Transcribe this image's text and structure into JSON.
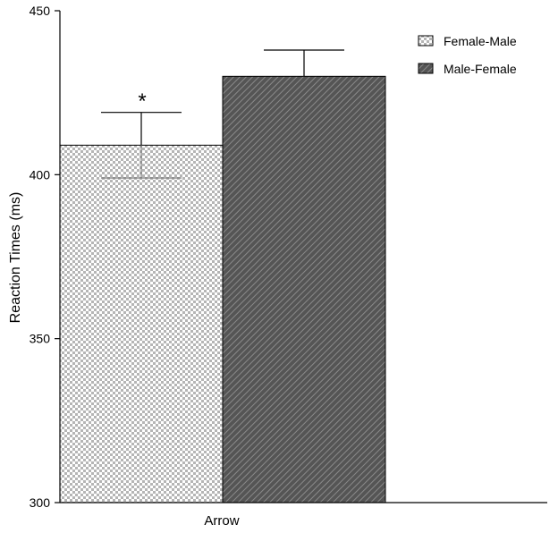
{
  "chart_data": {
    "type": "bar",
    "categories": [
      "Arrow"
    ],
    "series": [
      {
        "name": "Female-Male",
        "values": [
          409
        ],
        "error": [
          10
        ],
        "pattern": "checker"
      },
      {
        "name": "Male-Female",
        "values": [
          430
        ],
        "error": [
          8
        ],
        "pattern": "diagonal-hatch"
      }
    ],
    "xlabel": "",
    "ylabel": "Reaction Times (ms)",
    "ylim": [
      300,
      450
    ],
    "yticks": [
      300,
      350,
      400,
      450
    ],
    "annotations": [
      {
        "series": "Female-Male",
        "category": "Arrow",
        "text": "*"
      }
    ],
    "legend": {
      "placement": "top-right"
    },
    "grid": false,
    "colors": {
      "female_male_light": "#ffffff",
      "female_male_dark": "#b5b5b5",
      "male_female_fill": "#555555",
      "male_female_hatch": "#8a8a8a",
      "error_bar": "#000000",
      "axis": "#000000"
    }
  }
}
